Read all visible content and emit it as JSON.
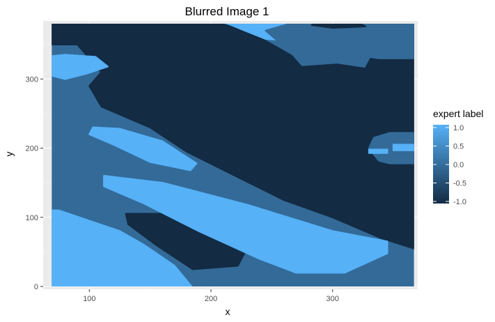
{
  "chart_data": {
    "type": "heatmap",
    "title": "Blurred Image 1",
    "xlabel": "x",
    "ylabel": "y",
    "xlim": [
      62,
      370
    ],
    "ylim": [
      -4,
      384
    ],
    "x_data_range": [
      69,
      367
    ],
    "y_data_range": [
      0,
      380
    ],
    "xticks": [
      100,
      200,
      300
    ],
    "yticks": [
      0,
      100,
      200,
      300
    ],
    "grid": true,
    "legend": {
      "title": "expert label",
      "placement": "right",
      "min": -1.0,
      "max": 1.0,
      "ticks": [
        "1.0",
        "0.5",
        "0.0",
        "-0.5",
        "-1.0"
      ],
      "tick_values": [
        1.0,
        0.5,
        0.0,
        -0.5,
        -1.0
      ],
      "color_low": "#132B43",
      "color_high": "#56B1F7"
    },
    "levels": [
      {
        "value": -1,
        "color": "#132B43"
      },
      {
        "value": 0,
        "color": "#336A98"
      },
      {
        "value": 1,
        "color": "#56B1F7"
      }
    ],
    "regions": [
      {
        "value": -1,
        "points": [
          [
            69,
            380
          ],
          [
            207,
            380
          ],
          [
            230,
            370
          ],
          [
            270,
            330
          ],
          [
            327,
            315
          ],
          [
            333,
            335
          ],
          [
            340,
            355
          ],
          [
            360,
            370
          ],
          [
            367,
            380
          ],
          [
            367,
            55
          ],
          [
            340,
            70
          ],
          [
            300,
            100
          ],
          [
            260,
            125
          ],
          [
            220,
            160
          ],
          [
            180,
            195
          ],
          [
            150,
            230
          ],
          [
            110,
            260
          ],
          [
            100,
            290
          ],
          [
            110,
            310
          ],
          [
            100,
            330
          ],
          [
            90,
            350
          ],
          [
            69,
            350
          ]
        ]
      },
      {
        "value": -1,
        "points": [
          [
            130,
            105
          ],
          [
            175,
            105
          ],
          [
            205,
            85
          ],
          [
            228,
            50
          ],
          [
            222,
            30
          ],
          [
            185,
            25
          ],
          [
            155,
            60
          ],
          [
            132,
            90
          ]
        ]
      },
      {
        "value": 1,
        "points": [
          [
            69,
            0
          ],
          [
            184,
            0
          ],
          [
            170,
            30
          ],
          [
            145,
            60
          ],
          [
            125,
            80
          ],
          [
            100,
            95
          ],
          [
            75,
            110
          ],
          [
            69,
            110
          ]
        ]
      },
      {
        "value": 1,
        "points": [
          [
            112,
            160
          ],
          [
            160,
            150
          ],
          [
            230,
            118
          ],
          [
            300,
            80
          ],
          [
            345,
            65
          ],
          [
            345,
            48
          ],
          [
            310,
            20
          ],
          [
            270,
            20
          ],
          [
            240,
            40
          ],
          [
            190,
            80
          ],
          [
            145,
            120
          ],
          [
            112,
            145
          ]
        ]
      },
      {
        "value": 1,
        "points": [
          [
            103,
            230
          ],
          [
            125,
            228
          ],
          [
            160,
            210
          ],
          [
            188,
            178
          ],
          [
            183,
            168
          ],
          [
            150,
            180
          ],
          [
            120,
            205
          ],
          [
            100,
            220
          ]
        ]
      },
      {
        "value": 1,
        "points": [
          [
            69,
            333
          ],
          [
            80,
            335
          ],
          [
            105,
            332
          ],
          [
            115,
            318
          ],
          [
            98,
            308
          ],
          [
            80,
            300
          ],
          [
            69,
            305
          ]
        ]
      },
      {
        "value": 1,
        "points": [
          [
            210,
            383
          ],
          [
            255,
            383
          ],
          [
            300,
            378
          ],
          [
            340,
            372
          ],
          [
            355,
            368
          ],
          [
            328,
            362
          ],
          [
            300,
            358
          ],
          [
            270,
            355
          ],
          [
            245,
            358
          ],
          [
            225,
            372
          ]
        ]
      },
      {
        "value": 0,
        "points": [
          [
            290,
            383
          ],
          [
            350,
            383
          ],
          [
            367,
            383
          ],
          [
            367,
            330
          ],
          [
            338,
            330
          ],
          [
            320,
            335
          ],
          [
            315,
            325
          ],
          [
            275,
            320
          ],
          [
            265,
            340
          ],
          [
            255,
            355
          ],
          [
            245,
            370
          ],
          [
            265,
            380
          ]
        ]
      },
      {
        "value": -1,
        "points": [
          [
            285,
            383
          ],
          [
            320,
            382
          ],
          [
            327,
            376
          ],
          [
            300,
            374
          ],
          [
            283,
            378
          ]
        ]
      },
      {
        "value": 0,
        "points": [
          [
            347,
            222
          ],
          [
            367,
            222
          ],
          [
            367,
            178
          ],
          [
            347,
            178
          ],
          [
            338,
            182
          ],
          [
            330,
            200
          ],
          [
            334,
            215
          ]
        ]
      },
      {
        "value": 1,
        "points": [
          [
            350,
            205
          ],
          [
            367,
            205
          ],
          [
            367,
            197
          ],
          [
            350,
            197
          ]
        ]
      },
      {
        "value": 1,
        "points": [
          [
            330,
            198
          ],
          [
            345,
            198
          ],
          [
            345,
            193
          ],
          [
            330,
            193
          ]
        ]
      }
    ]
  }
}
